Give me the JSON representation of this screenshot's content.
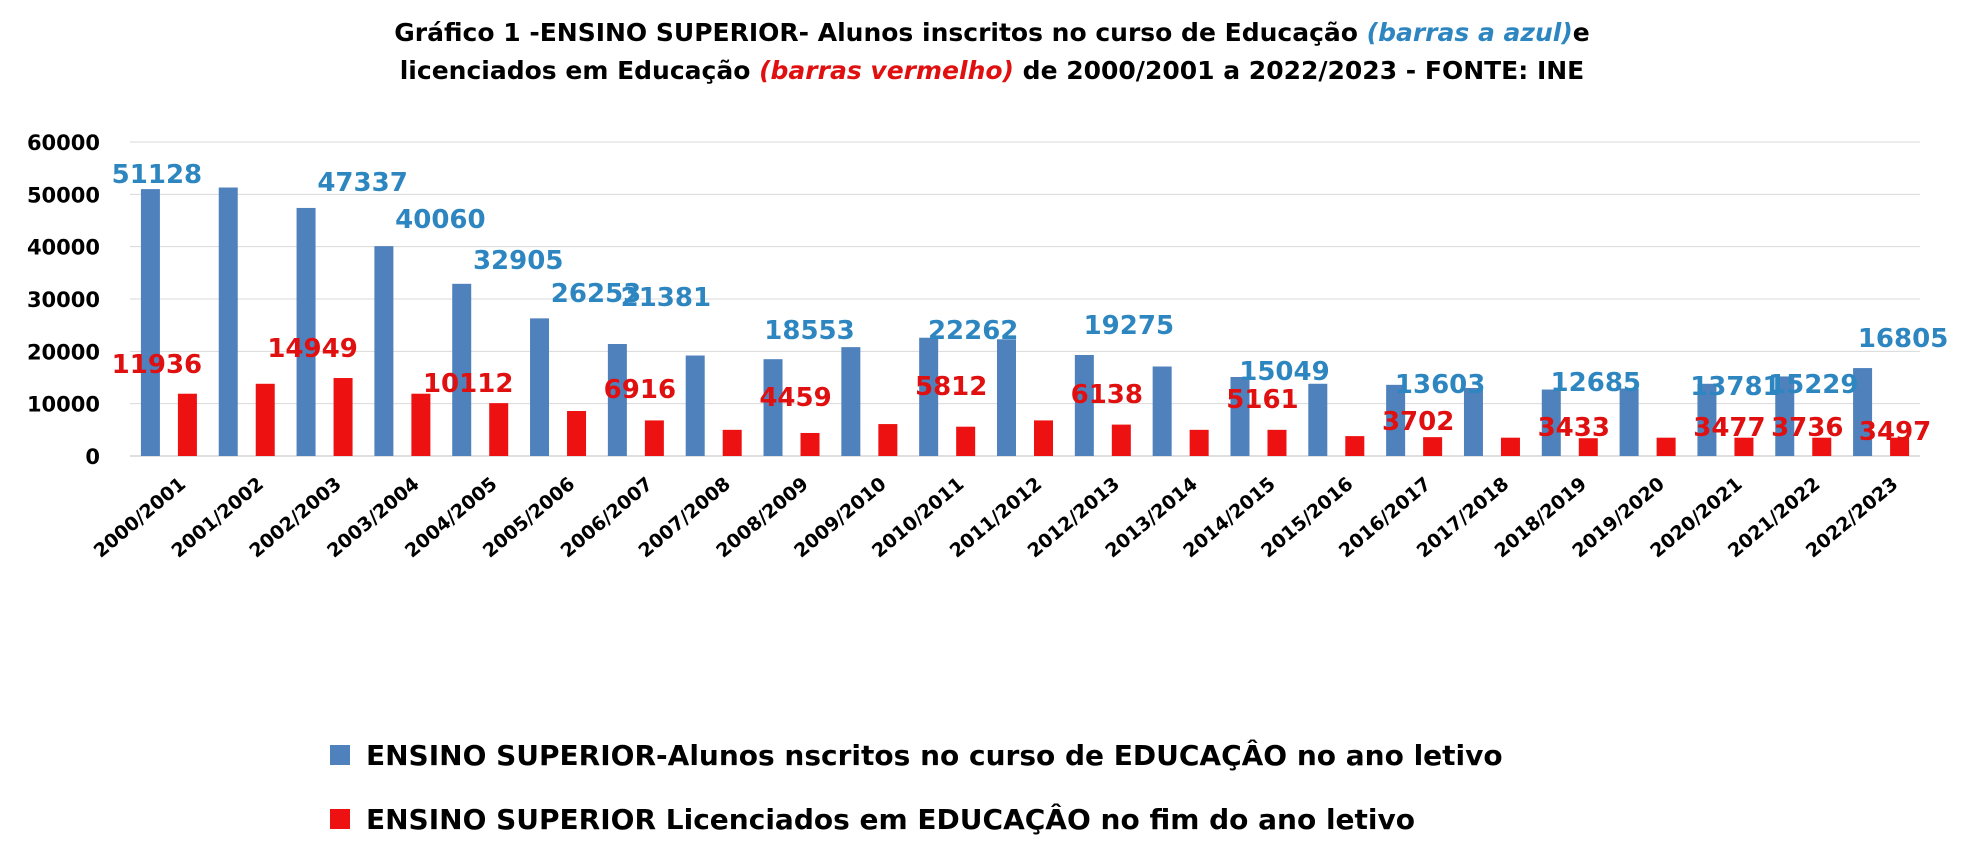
{
  "title": {
    "line1_prefix": "Gráfico 1 -ENSINO SUPERIOR- Alunos inscritos no curso de Educação ",
    "line1_blue": "(barras a azul)",
    "line1_suffix": "e",
    "line2_prefix": "licenciados em  Educação ",
    "line2_red": "(barras vermelho)",
    "line2_suffix": "  de  2000/2001 a 2022/2023 - FONTE: INE"
  },
  "colors": {
    "blue_bar": "#4F81BD",
    "red_bar": "#EE1111",
    "blue_label": "#2E86C1",
    "red_label": "#E01010",
    "grid": "#D9D9D9",
    "axis": "#BFBFBF"
  },
  "chart_data": {
    "type": "bar",
    "categories": [
      "2000/2001",
      "2001/2002",
      "2002/2003",
      "2003/2004",
      "2004/2005",
      "2005/2006",
      "2006/2007",
      "2007/2008",
      "2008/2009",
      "2009/2010",
      "2010/2011",
      "2011/2012",
      "2012/2013",
      "2013/2014",
      "2014/2015",
      "2015/2016",
      "2016/2017",
      "2017/2018",
      "2018/2019",
      "2019/2020",
      "2020/2021",
      "2021/2022",
      "2022/2023"
    ],
    "series": [
      {
        "name": "ENSINO SUPERIOR-Alunos nscritos no curso de EDUCAÇÂO no ano letivo",
        "color": "#4F81BD",
        "values": [
          51000,
          51300,
          47400,
          40100,
          32900,
          26300,
          21400,
          19200,
          18500,
          20800,
          22600,
          22300,
          19300,
          17100,
          15100,
          13800,
          13600,
          13000,
          12700,
          12900,
          13800,
          15200,
          16800
        ],
        "data_labels": [
          "51128",
          "47337",
          "40060",
          "32905",
          "26253",
          "21381",
          "18553",
          "22262",
          "19275",
          "15049",
          "13603",
          "12685",
          "13781",
          "15229",
          "16805"
        ]
      },
      {
        "name": "ENSINO SUPERIOR  Licenciados em EDUCAÇÂO no fim do ano letivo",
        "color": "#EE1111",
        "values": [
          11900,
          13800,
          14900,
          11900,
          10100,
          8600,
          6800,
          5000,
          4400,
          6100,
          5600,
          6800,
          6000,
          5000,
          5000,
          3800,
          3600,
          3500,
          3400,
          3500,
          3500,
          3500,
          3500
        ],
        "data_labels": [
          "11936",
          "14949",
          "10112",
          "6916",
          "4459",
          "5812",
          "6138",
          "5161",
          "3702",
          "3433",
          "3477",
          "3736",
          "3497"
        ]
      }
    ],
    "xlabel": "",
    "ylabel": "",
    "ylim": [
      0,
      60000
    ],
    "yticks": [
      "0",
      "10000",
      "20000",
      "30000",
      "40000",
      "50000",
      "60000"
    ],
    "grid": true,
    "legend_position": "bottom"
  }
}
